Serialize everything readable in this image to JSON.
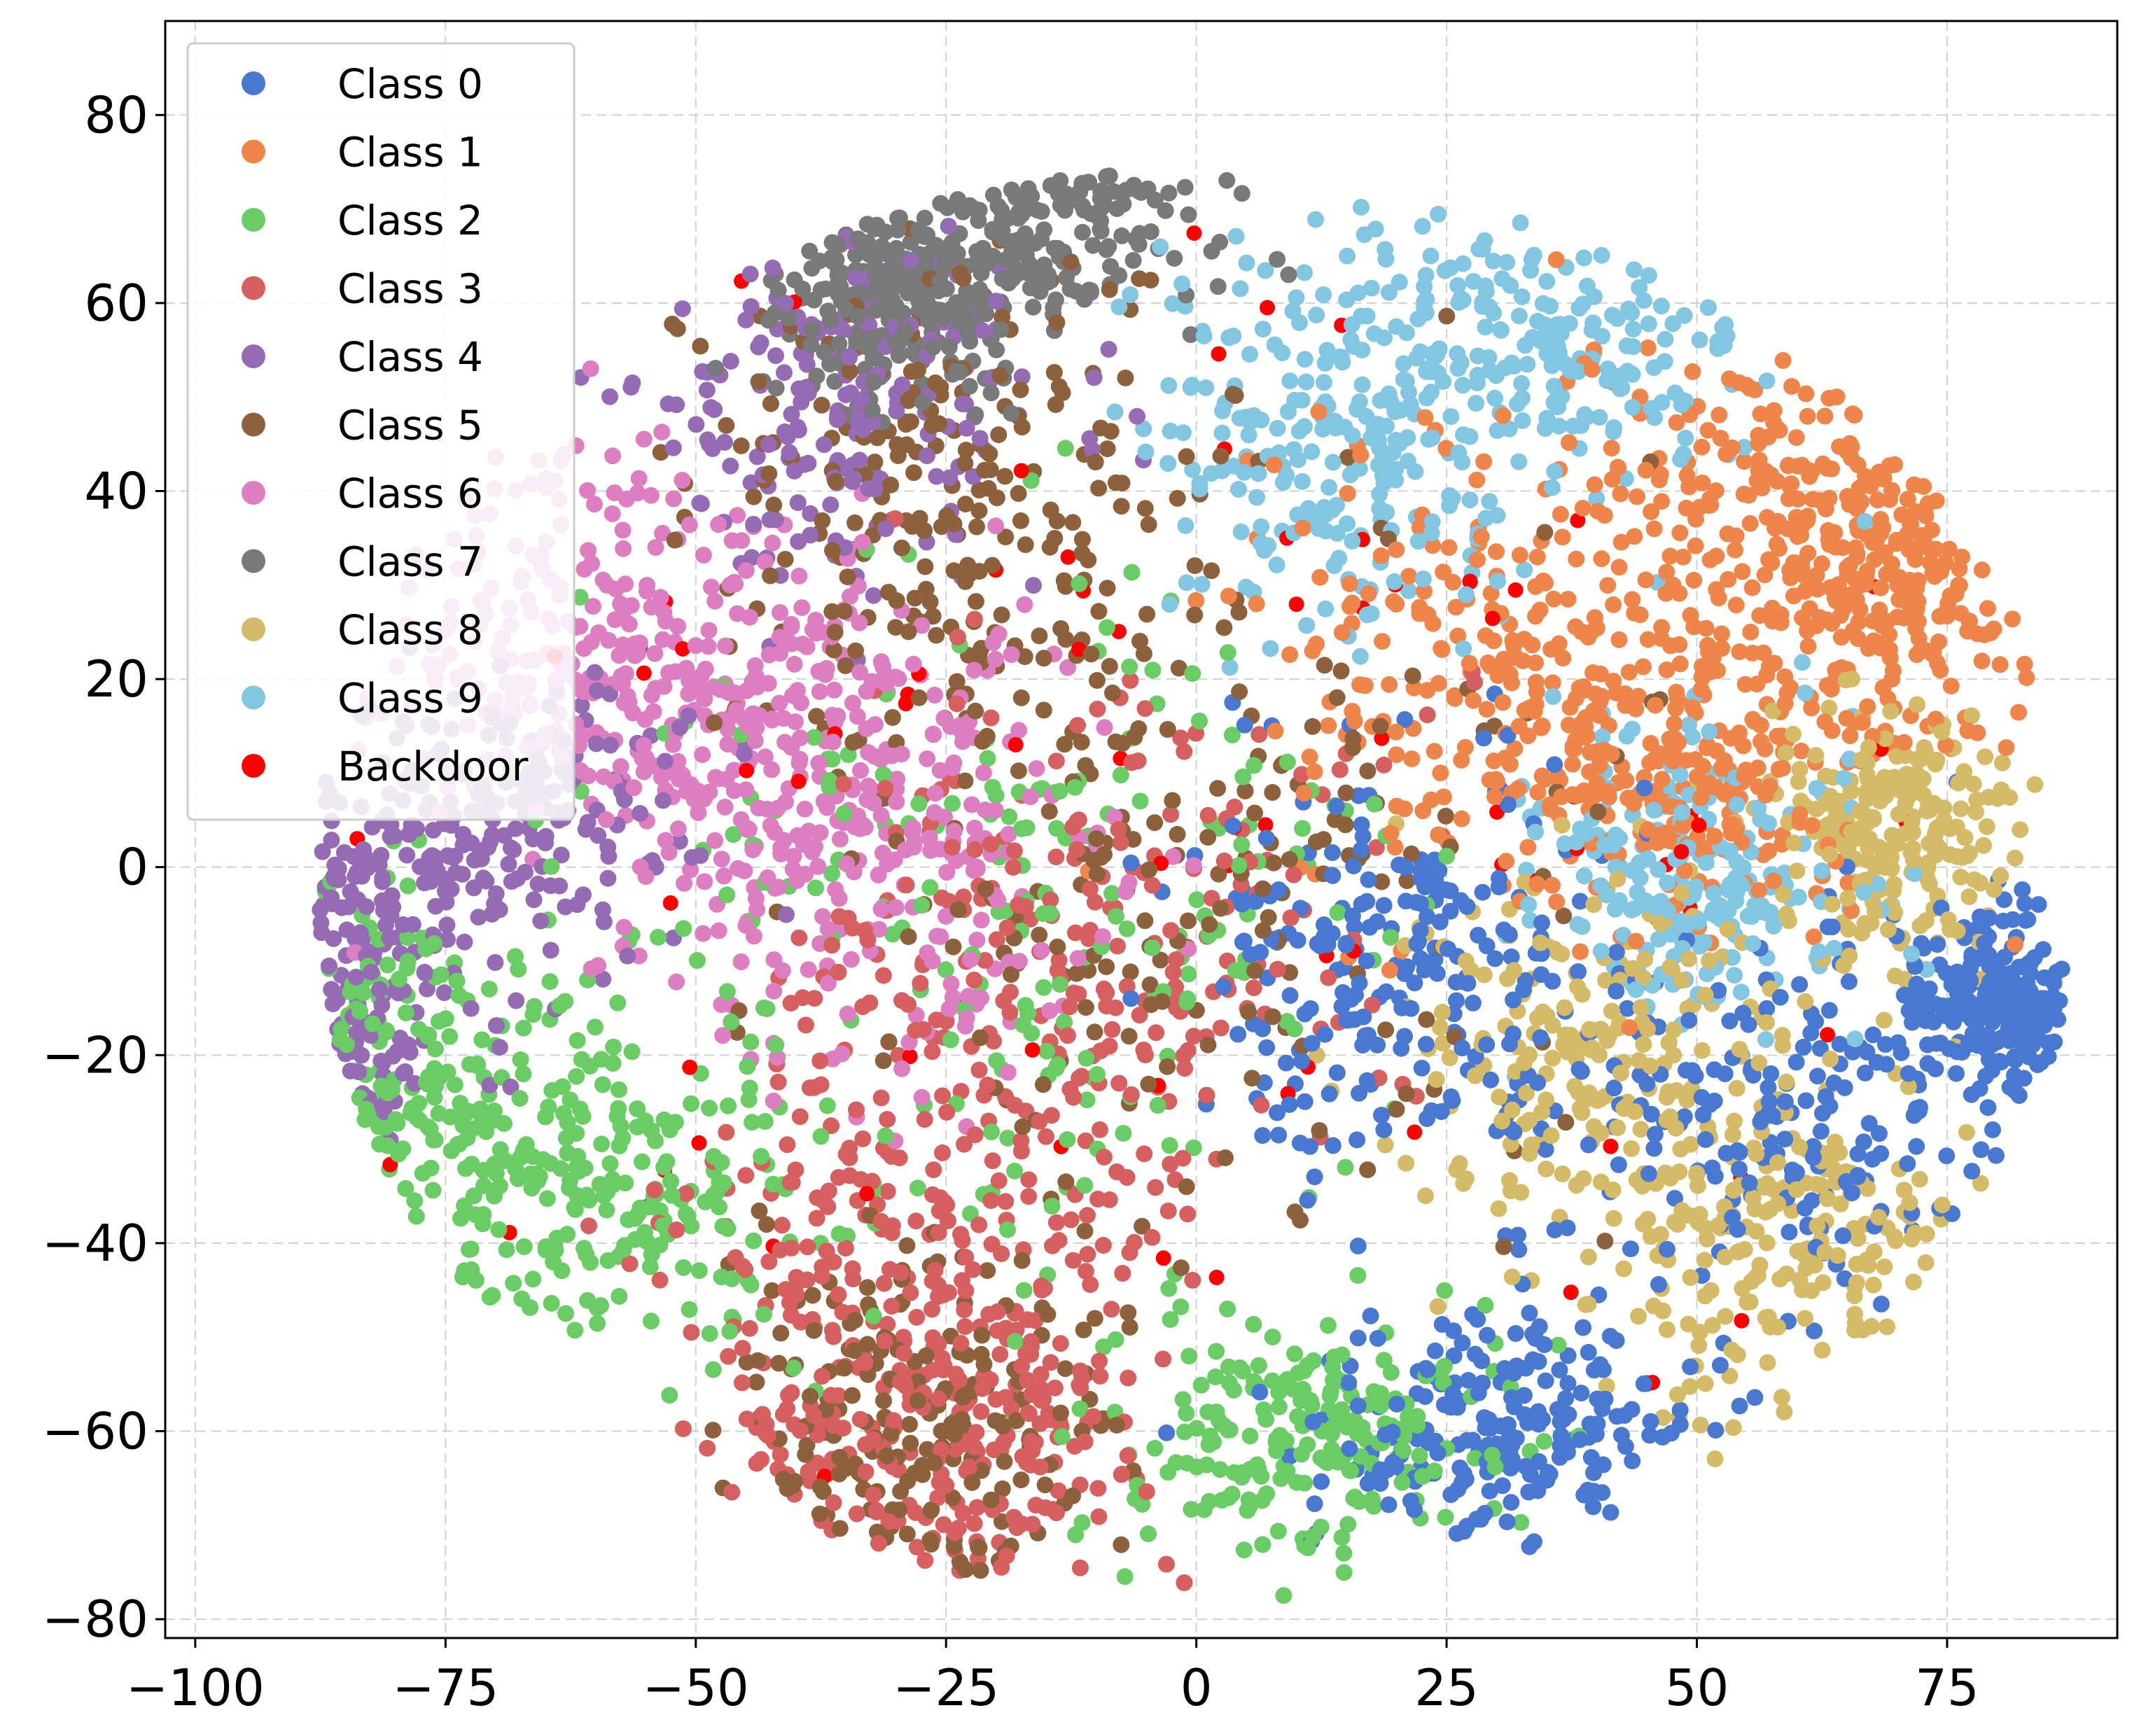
{
  "chart_data": {
    "type": "scatter",
    "title": "",
    "xlabel": "",
    "ylabel": "",
    "xlim": [
      -103,
      92
    ],
    "ylim": [
      -82,
      90
    ],
    "xticks": [
      -100,
      -75,
      -50,
      -25,
      0,
      25,
      50,
      75
    ],
    "yticks": [
      -80,
      -60,
      -40,
      -20,
      0,
      20,
      40,
      60,
      80
    ],
    "xtick_labels": [
      "−100",
      "−75",
      "−50",
      "−25",
      "0",
      "25",
      "50",
      "75"
    ],
    "ytick_labels": [
      "−80",
      "−60",
      "−40",
      "−20",
      "0",
      "20",
      "40",
      "60",
      "80"
    ],
    "grid": true,
    "legend_position": "top-left",
    "series": [
      {
        "name": "Class 0",
        "color": "#4878d0",
        "clusters": [
          [
            30,
            -60,
            9,
            7
          ],
          [
            60,
            -25,
            12,
            10
          ],
          [
            80,
            -15,
            4,
            5
          ],
          [
            20,
            -10,
            10,
            10
          ]
        ]
      },
      {
        "name": "Class 1",
        "color": "#ee854a",
        "clusters": [
          [
            60,
            40,
            12,
            10
          ],
          [
            70,
            30,
            8,
            8
          ],
          [
            30,
            20,
            12,
            12
          ],
          [
            50,
            10,
            10,
            8
          ]
        ]
      },
      {
        "name": "Class 2",
        "color": "#6acc64",
        "clusters": [
          [
            -80,
            -20,
            8,
            10
          ],
          [
            -60,
            -35,
            10,
            8
          ],
          [
            10,
            -60,
            10,
            6
          ],
          [
            -20,
            -5,
            20,
            20
          ]
        ]
      },
      {
        "name": "Class 3",
        "color": "#d65f5f",
        "clusters": [
          [
            -30,
            -40,
            12,
            15
          ],
          [
            -25,
            -60,
            10,
            8
          ],
          [
            -10,
            -10,
            15,
            15
          ]
        ]
      },
      {
        "name": "Class 4",
        "color": "#956cb4",
        "clusters": [
          [
            -85,
            -10,
            6,
            10
          ],
          [
            -35,
            50,
            10,
            10
          ],
          [
            -70,
            5,
            10,
            8
          ]
        ]
      },
      {
        "name": "Class 5",
        "color": "#8c613c",
        "clusters": [
          [
            -30,
            -60,
            10,
            10
          ],
          [
            -25,
            40,
            12,
            15
          ],
          [
            0,
            5,
            20,
            20
          ]
        ]
      },
      {
        "name": "Class 6",
        "color": "#dc7ec0",
        "clusters": [
          [
            -65,
            25,
            10,
            12
          ],
          [
            -45,
            15,
            10,
            10
          ],
          [
            -30,
            0,
            12,
            12
          ]
        ]
      },
      {
        "name": "Class 7",
        "color": "#797979",
        "clusters": [
          [
            -20,
            68,
            10,
            6
          ],
          [
            -12,
            78,
            4,
            4
          ],
          [
            -30,
            60,
            6,
            6
          ]
        ]
      },
      {
        "name": "Class 8",
        "color": "#d5bb67",
        "clusters": [
          [
            60,
            -40,
            10,
            10
          ],
          [
            40,
            -20,
            10,
            10
          ],
          [
            70,
            5,
            6,
            6
          ]
        ]
      },
      {
        "name": "Class 9",
        "color": "#82c6e2",
        "clusters": [
          [
            35,
            55,
            10,
            8
          ],
          [
            15,
            45,
            10,
            10
          ],
          [
            50,
            0,
            8,
            8
          ]
        ]
      },
      {
        "name": "Backdoor",
        "color": "#ff0000",
        "clusters": [
          [
            0,
            0,
            40,
            30
          ]
        ]
      }
    ]
  }
}
